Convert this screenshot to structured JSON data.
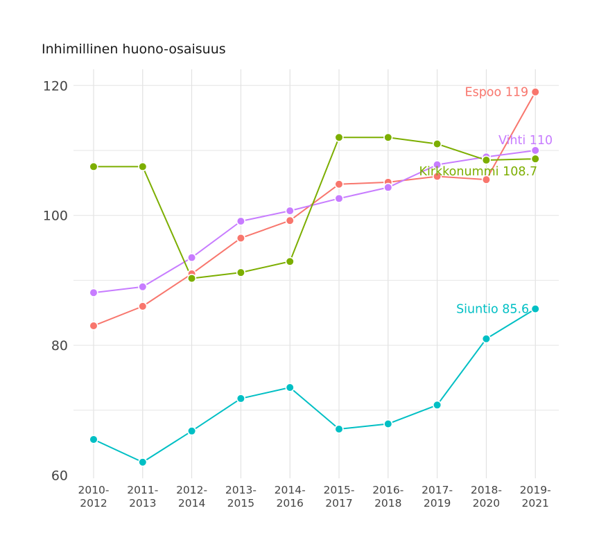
{
  "chart_data": {
    "type": "line",
    "title": "Inhimillinen huono-osaisuus",
    "xlabel": "",
    "ylabel": "",
    "ylim": [
      60,
      120
    ],
    "y_ticks": [
      60,
      80,
      100,
      120
    ],
    "grid": true,
    "categories": [
      "2010-2012",
      "2011-2013",
      "2012-2014",
      "2013-2015",
      "2014-2016",
      "2015-2017",
      "2016-2018",
      "2017-2019",
      "2018-2020",
      "2019-2021"
    ],
    "category_lines": [
      [
        "2010-",
        "2012"
      ],
      [
        "2011-",
        "2013"
      ],
      [
        "2012-",
        "2014"
      ],
      [
        "2013-",
        "2015"
      ],
      [
        "2014-",
        "2016"
      ],
      [
        "2015-",
        "2017"
      ],
      [
        "2016-",
        "2018"
      ],
      [
        "2017-",
        "2019"
      ],
      [
        "2018-",
        "2020"
      ],
      [
        "2019-",
        "2021"
      ]
    ],
    "series": [
      {
        "name": "Espoo",
        "label": "Espoo 119",
        "color": "#F8766D",
        "values": [
          83.0,
          86.0,
          91.0,
          96.5,
          99.2,
          104.8,
          105.1,
          106.0,
          105.5,
          119.0
        ]
      },
      {
        "name": "Vihti",
        "label": "Vihti 110",
        "color": "#C77CFF",
        "values": [
          88.1,
          89.0,
          93.5,
          99.1,
          100.7,
          102.6,
          104.3,
          107.8,
          109.0,
          110.0
        ]
      },
      {
        "name": "Kirkkonummi",
        "label": "Kirkkonummi 108.7",
        "color": "#7CAE00",
        "values": [
          107.5,
          107.5,
          90.3,
          91.2,
          92.9,
          112.0,
          112.0,
          111.0,
          108.5,
          108.7
        ]
      },
      {
        "name": "Siuntio",
        "label": "Siuntio 85.6",
        "color": "#00BFC4",
        "values": [
          65.5,
          62.0,
          66.8,
          71.8,
          73.5,
          67.1,
          67.9,
          70.8,
          81.0,
          85.6
        ]
      }
    ]
  }
}
